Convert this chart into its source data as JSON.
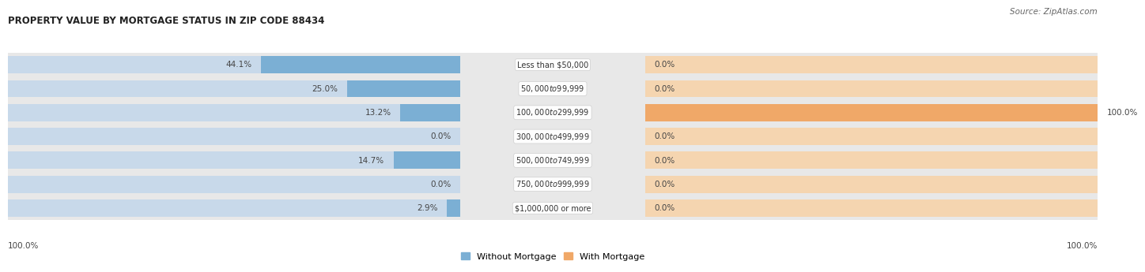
{
  "title": "PROPERTY VALUE BY MORTGAGE STATUS IN ZIP CODE 88434",
  "source": "Source: ZipAtlas.com",
  "categories": [
    "Less than $50,000",
    "$50,000 to $99,999",
    "$100,000 to $299,999",
    "$300,000 to $499,999",
    "$500,000 to $749,999",
    "$750,000 to $999,999",
    "$1,000,000 or more"
  ],
  "without_mortgage": [
    44.1,
    25.0,
    13.2,
    0.0,
    14.7,
    0.0,
    2.9
  ],
  "with_mortgage": [
    0.0,
    0.0,
    100.0,
    0.0,
    0.0,
    0.0,
    0.0
  ],
  "color_without": "#7BAFD4",
  "color_with": "#F0A868",
  "bar_bg_without": "#C8D9EA",
  "bar_bg_with": "#F5D5B0",
  "row_bg": "#E8E8E8",
  "title_color": "#222222",
  "source_color": "#666666",
  "legend_label_without": "Without Mortgage",
  "legend_label_with": "With Mortgage",
  "max_val": 100.0
}
